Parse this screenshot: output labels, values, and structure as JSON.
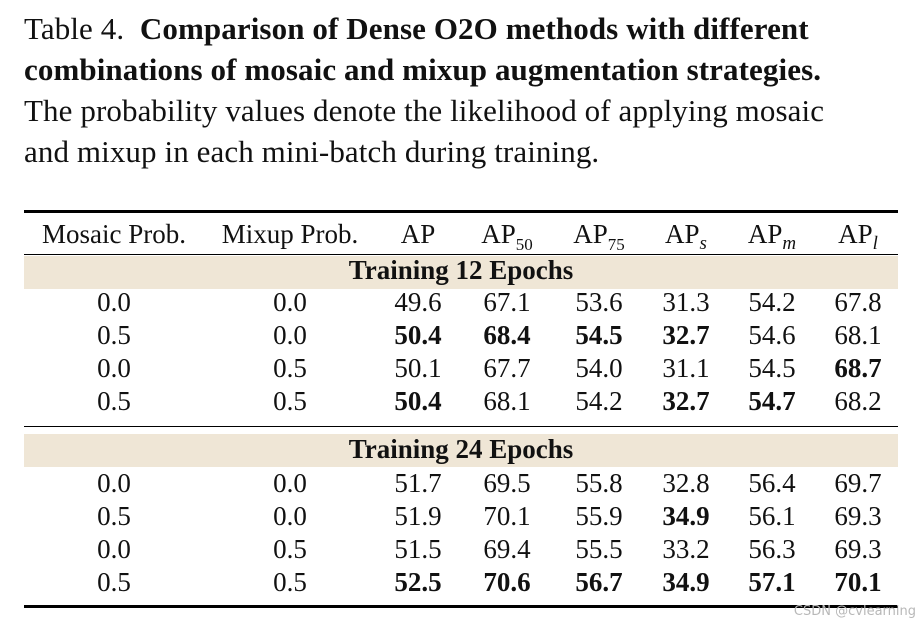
{
  "caption": {
    "label": "Table 4.",
    "bold_line1": "Comparison of Dense O2O methods with different",
    "bold_line2": "combinations of mosaic and mixup augmentation strategies.",
    "body_line1": "The probability values denote the likelihood of applying mosaic",
    "body_line2": "and mixup in each mini-batch during training."
  },
  "table": {
    "headers": {
      "mosaic": "Mosaic Prob.",
      "mixup": "Mixup Prob.",
      "ap": "AP",
      "ap50_base": "AP",
      "ap50_sub": "50",
      "ap75_base": "AP",
      "ap75_sub": "75",
      "aps_base": "AP",
      "aps_sub": "s",
      "apm_base": "AP",
      "apm_sub": "m",
      "apl_base": "AP",
      "apl_sub": "l"
    },
    "groups": [
      {
        "title": "Training 12 Epochs",
        "rows": [
          [
            "0.0",
            "0.0",
            "49.6",
            "67.1",
            "53.6",
            "31.3",
            "54.2",
            "67.8"
          ],
          [
            "0.5",
            "0.0",
            "50.4",
            "68.4",
            "54.5",
            "32.7",
            "54.6",
            "68.1"
          ],
          [
            "0.0",
            "0.5",
            "50.1",
            "67.7",
            "54.0",
            "31.1",
            "54.5",
            "68.7"
          ],
          [
            "0.5",
            "0.5",
            "50.4",
            "68.1",
            "54.2",
            "32.7",
            "54.7",
            "68.2"
          ]
        ]
      },
      {
        "title": "Training 24 Epochs",
        "rows": [
          [
            "0.0",
            "0.0",
            "51.7",
            "69.5",
            "55.8",
            "32.8",
            "56.4",
            "69.7"
          ],
          [
            "0.5",
            "0.0",
            "51.9",
            "70.1",
            "55.9",
            "34.9",
            "56.1",
            "69.3"
          ],
          [
            "0.0",
            "0.5",
            "51.5",
            "69.4",
            "55.5",
            "33.2",
            "56.3",
            "69.3"
          ],
          [
            "0.5",
            "0.5",
            "52.5",
            "70.6",
            "56.7",
            "34.9",
            "57.1",
            "70.1"
          ]
        ]
      }
    ]
  },
  "watermark": "CSDN @cvlearning"
}
